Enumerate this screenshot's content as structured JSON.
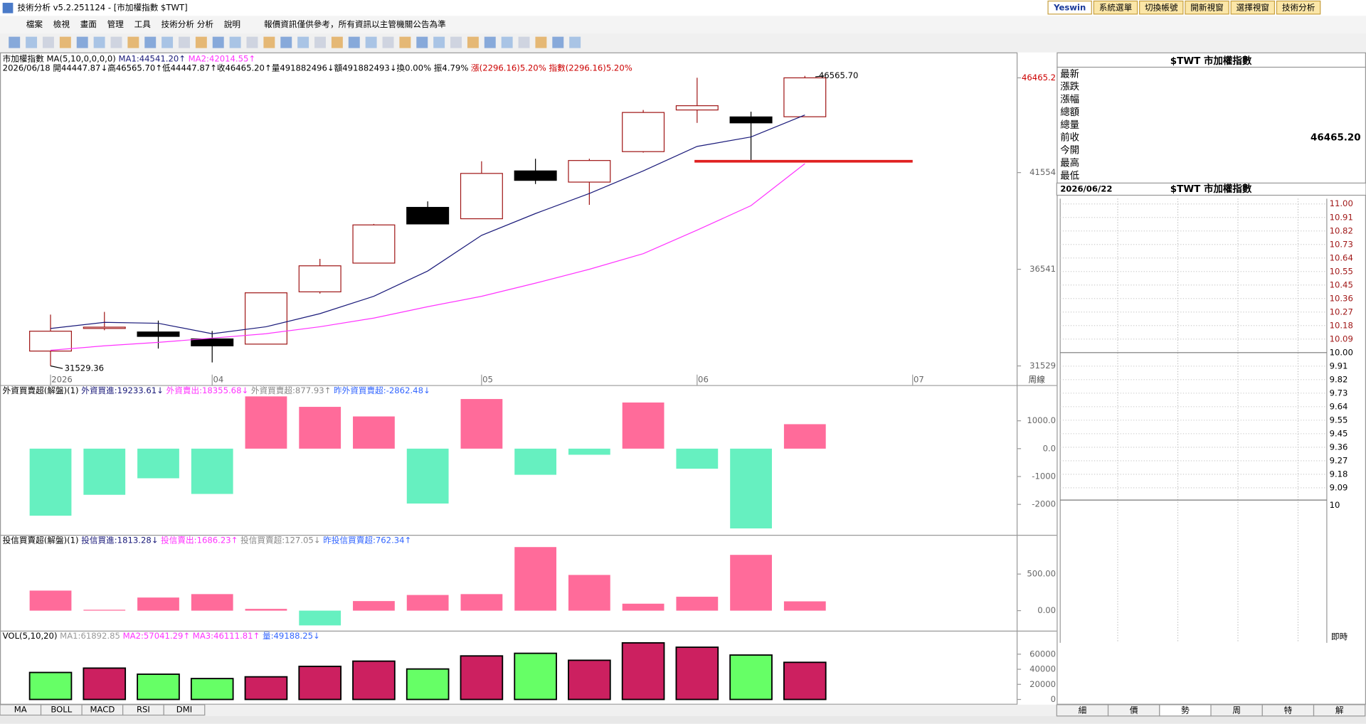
{
  "window": {
    "title": "技術分析 v5.2.251124 - [市加權指數 $TWT]",
    "menu": [
      "檔案",
      "檢視",
      "畫面",
      "管理",
      "工具",
      "技術分析",
      "分析",
      "說明"
    ],
    "notice": "報價資訊僅供參考，所有資訊以主管機關公告為準",
    "buttons": [
      "Yeswin",
      "系統選單",
      "切換帳號",
      "開新視窗",
      "選擇視窗",
      "技術分析"
    ]
  },
  "chart_data": [
    {
      "type": "candlestick",
      "header": [
        {
          "text": "市加權指數 MA(5,10,0,0,0,0)",
          "color": "#000000"
        },
        {
          "text": "MA1:44541.20↑",
          "color": "#1a1a7a"
        },
        {
          "text": "MA2:42014.55↑",
          "color": "#ff33ff"
        }
      ],
      "info": [
        {
          "text": "2026/06/18",
          "color": "#000000"
        },
        {
          "text": "開44447.87↓高46565.70↑低44447.87↑收46465.20↑量491882496↓額491882493↓換0.00% 振4.79%",
          "color": "#000000"
        },
        {
          "text": "漲(2296.16)5.20% 指數(2296.16)5.20%",
          "color": "#cc0000"
        }
      ],
      "open": [
        32300,
        33520,
        33290,
        32930,
        32660,
        35370,
        36860,
        39750,
        39160,
        41640,
        41060,
        42640,
        44800,
        44440,
        44447.87
      ],
      "high": [
        34190,
        34330,
        33880,
        33340,
        35320,
        37080,
        38890,
        40060,
        42140,
        42270,
        42270,
        44800,
        46470,
        44710,
        46565.7
      ],
      "low": [
        31529.36,
        33380,
        32430,
        31710,
        32660,
        35280,
        36860,
        38890,
        39160,
        40960,
        39880,
        42590,
        44130,
        42090,
        44447.87
      ],
      "close": [
        33330,
        33540,
        33060,
        32570,
        35320,
        36720,
        38840,
        38890,
        41510,
        41150,
        42180,
        44670,
        45020,
        44130,
        46465.2
      ],
      "up_color": "#a01818",
      "down_color": "#000000",
      "series": [
        {
          "name": "MA1",
          "color": "#1a1a7a",
          "values": [
            33470,
            33790,
            33740,
            33200,
            33560,
            34240,
            35140,
            36450,
            38300,
            39430,
            40470,
            41640,
            42910,
            43400,
            44541.2
          ]
        },
        {
          "name": "MA2",
          "color": "#ff33ff",
          "values": [
            32340,
            32570,
            32750,
            32970,
            33200,
            33560,
            34010,
            34600,
            35140,
            35820,
            36540,
            37350,
            38570,
            39840,
            42014.55
          ]
        }
      ],
      "high_label": "46565.70",
      "low_label": "31529.36",
      "level_line": {
        "value": 42140,
        "from": 12,
        "to": 16,
        "color": "#e02020"
      },
      "x_labels": [
        {
          "index": 0,
          "label": "2026"
        },
        {
          "index": 3,
          "label": "04"
        },
        {
          "index": 8,
          "label": "05"
        },
        {
          "index": 12,
          "label": "06"
        },
        {
          "index": 16,
          "label": "07"
        }
      ],
      "period_label": "周線",
      "ylim": [
        31078,
        47558
      ],
      "yticks": [
        31529,
        36541,
        41554,
        46465.2
      ],
      "last_tick_color": "#cc0000"
    },
    {
      "type": "bar",
      "header": [
        {
          "text": "外資買賣超(解盤)(1)",
          "color": "#000000"
        },
        {
          "text": "外資買進:19233.61↓",
          "color": "#1a1a7a"
        },
        {
          "text": "外資賣出:18355.68↓",
          "color": "#ff33ff"
        },
        {
          "text": "外資買賣超:877.93↑",
          "color": "#888888"
        },
        {
          "text": "昨外資買賣超:-2862.48↓",
          "color": "#3366ff"
        }
      ],
      "values": [
        -2406,
        -1656,
        -1063,
        -1625,
        1875,
        1500,
        1156,
        -1969,
        1781,
        -938,
        -219,
        1656,
        -719,
        -2862.48,
        877.93
      ],
      "pos_color": "#ff6b9a",
      "neg_color": "#66f0c0",
      "ylim": [
        -3031,
        2250
      ],
      "yticks": [
        {
          "value": 1000,
          "label": "1000.0"
        },
        {
          "value": 0,
          "label": "0.0"
        },
        -1000,
        -2000
      ]
    },
    {
      "type": "bar",
      "header": [
        {
          "text": "投信買賣超(解盤)(1)",
          "color": "#000000"
        },
        {
          "text": "投信買進:1813.28↓",
          "color": "#1a1a7a"
        },
        {
          "text": "投信賣出:1686.23↑",
          "color": "#ff33ff"
        },
        {
          "text": "投信買賣超:127.05↓",
          "color": "#888888"
        },
        {
          "text": "昨投信買賣超:762.34↑",
          "color": "#3366ff"
        }
      ],
      "values": [
        274,
        12,
        179,
        226,
        24,
        -202,
        131,
        214,
        226,
        869,
        488,
        95,
        190,
        762.34,
        127.05
      ],
      "pos_color": "#ff6b9a",
      "neg_color": "#66f0c0",
      "ylim": [
        -250,
        1024
      ],
      "yticks": [
        {
          "value": 500,
          "label": "500.00"
        },
        {
          "value": 0,
          "label": "0.00"
        }
      ]
    },
    {
      "type": "volume",
      "header": [
        {
          "text": "VOL(5,10,20)",
          "color": "#000000"
        },
        {
          "text": "MA1:61892.85",
          "color": "#999999"
        },
        {
          "text": "MA2:57041.29↑",
          "color": "#ff33ff"
        },
        {
          "text": "MA3:46111.81↑",
          "color": "#ff33ff"
        },
        {
          "text": "量:49188.25↓",
          "color": "#3366ff"
        }
      ],
      "values": [
        35770,
        41540,
        33460,
        27690,
        30000,
        43850,
        50770,
        40380,
        57690,
        61150,
        51920,
        75000,
        69230,
        58850,
        49188.25
      ],
      "colors": [
        "#66ff66",
        "#cc2060",
        "#66ff66",
        "#66ff66",
        "#cc2060",
        "#cc2060",
        "#cc2060",
        "#66ff66",
        "#cc2060",
        "#66ff66",
        "#cc2060",
        "#cc2060",
        "#cc2060",
        "#66ff66",
        "#cc2060"
      ],
      "ylim": [
        -5770,
        90000
      ],
      "yticks": [
        0,
        20000,
        40000,
        60000
      ]
    }
  ],
  "quote_panel": {
    "title": "$TWT 市加權指數",
    "fields": [
      {
        "label": "最新"
      },
      {
        "label": "漲跌"
      },
      {
        "label": "漲幅"
      },
      {
        "label": "總額"
      },
      {
        "label": "總量"
      },
      {
        "label": "前收",
        "value": "46465.20"
      },
      {
        "label": "今開"
      },
      {
        "label": "最高"
      },
      {
        "label": "最低"
      }
    ],
    "date": "2026/06/22",
    "subtitle": "$TWT 市加權指數",
    "scale": [
      "11.00",
      "10.91",
      "10.82",
      "10.73",
      "10.64",
      "10.55",
      "10.45",
      "10.36",
      "10.27",
      "10.18",
      "10.09",
      "10.00",
      "9.91",
      "9.82",
      "9.73",
      "9.64",
      "9.55",
      "9.45",
      "9.36",
      "9.27",
      "9.18",
      "9.09"
    ],
    "base_label": "10",
    "realtime": "即時",
    "tabs": [
      "細",
      "價",
      "勢",
      "周",
      "特",
      "解"
    ]
  },
  "indicator_tabs": [
    "MA",
    "BOLL",
    "MACD",
    "RSI",
    "DMI"
  ]
}
